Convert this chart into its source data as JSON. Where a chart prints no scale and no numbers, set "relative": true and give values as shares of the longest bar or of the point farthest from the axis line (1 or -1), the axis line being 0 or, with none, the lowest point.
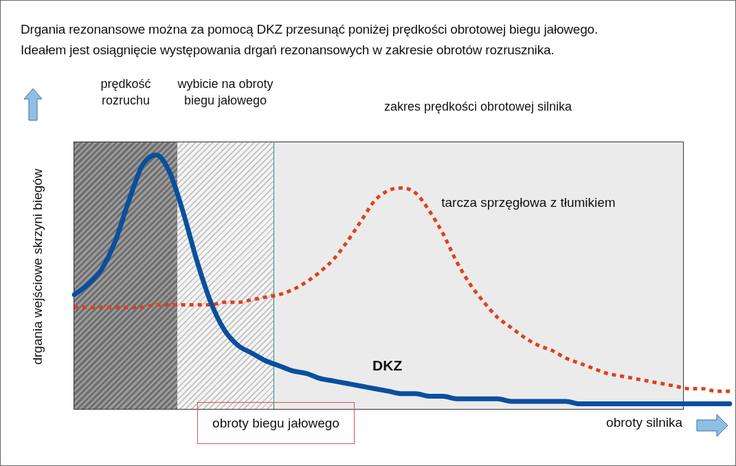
{
  "chart_data": {
    "type": "line",
    "title": "Drgania rezonansowe można za pomocą DKZ przesunąć poniżej prędkości obrotowej biegu jałowego.\nIdeałem jest osiągnięcie występowania drgań rezonansowych w zakresie obrotów rozrusznika.",
    "xlabel": "obroty silnika",
    "ylabel": "drgania wejściowe skrzyni biegów",
    "relative": true,
    "tick_labels": false,
    "marker": "none",
    "annotations": [
      "prędkość rozruchu",
      "wybicie na obroty biegu jałowego",
      "zakres prędkości obrotowej silnika",
      "obroty biegu jałowego"
    ],
    "categories": [
      null,
      null,
      null,
      null,
      null,
      null,
      null,
      null,
      null,
      null,
      null,
      null,
      null,
      null,
      null,
      null,
      null,
      null,
      null,
      null,
      null,
      null,
      null,
      null,
      null,
      null,
      null,
      null,
      null,
      null,
      null,
      null,
      null,
      null,
      null,
      null,
      null,
      null,
      null,
      null,
      null,
      null,
      null,
      null,
      null,
      null,
      null,
      null,
      null
    ],
    "series": [
      {
        "name": "DKZ",
        "color": "#0a4f9e",
        "line_style": "solid",
        "values": [
          0.45,
          0.49,
          0.55,
          0.66,
          0.82,
          0.96,
          1,
          0.93,
          0.77,
          0.58,
          0.42,
          0.31,
          0.25,
          0.22,
          0.19,
          0.17,
          0.15,
          0.14,
          0.12,
          0.11,
          0.1,
          0.09,
          0.08,
          0.07,
          0.06,
          0.06,
          0.05,
          0.05,
          0.04,
          0.04,
          0.04,
          0.04,
          0.03,
          0.03,
          0.03,
          0.03,
          0.03,
          0.02,
          0.02,
          0.02,
          0.02,
          0.02,
          0.02,
          0.02,
          0.02,
          0.02,
          0.02,
          0.02,
          0.02
        ]
      },
      {
        "name": "tarcza sprzęgłowa z tłumikiem",
        "color": "#e0401a",
        "line_style": "dotted",
        "values": [
          0.4,
          0.4,
          0.4,
          0.4,
          0.4,
          0.4,
          0.41,
          0.41,
          0.41,
          0.41,
          0.41,
          0.42,
          0.42,
          0.43,
          0.44,
          0.45,
          0.47,
          0.5,
          0.54,
          0.59,
          0.66,
          0.74,
          0.82,
          0.86,
          0.87,
          0.85,
          0.78,
          0.69,
          0.58,
          0.49,
          0.42,
          0.36,
          0.32,
          0.28,
          0.25,
          0.23,
          0.2,
          0.18,
          0.16,
          0.14,
          0.13,
          0.12,
          0.11,
          0.1,
          0.09,
          0.08,
          0.08,
          0.07,
          0.07
        ]
      }
    ]
  }
}
